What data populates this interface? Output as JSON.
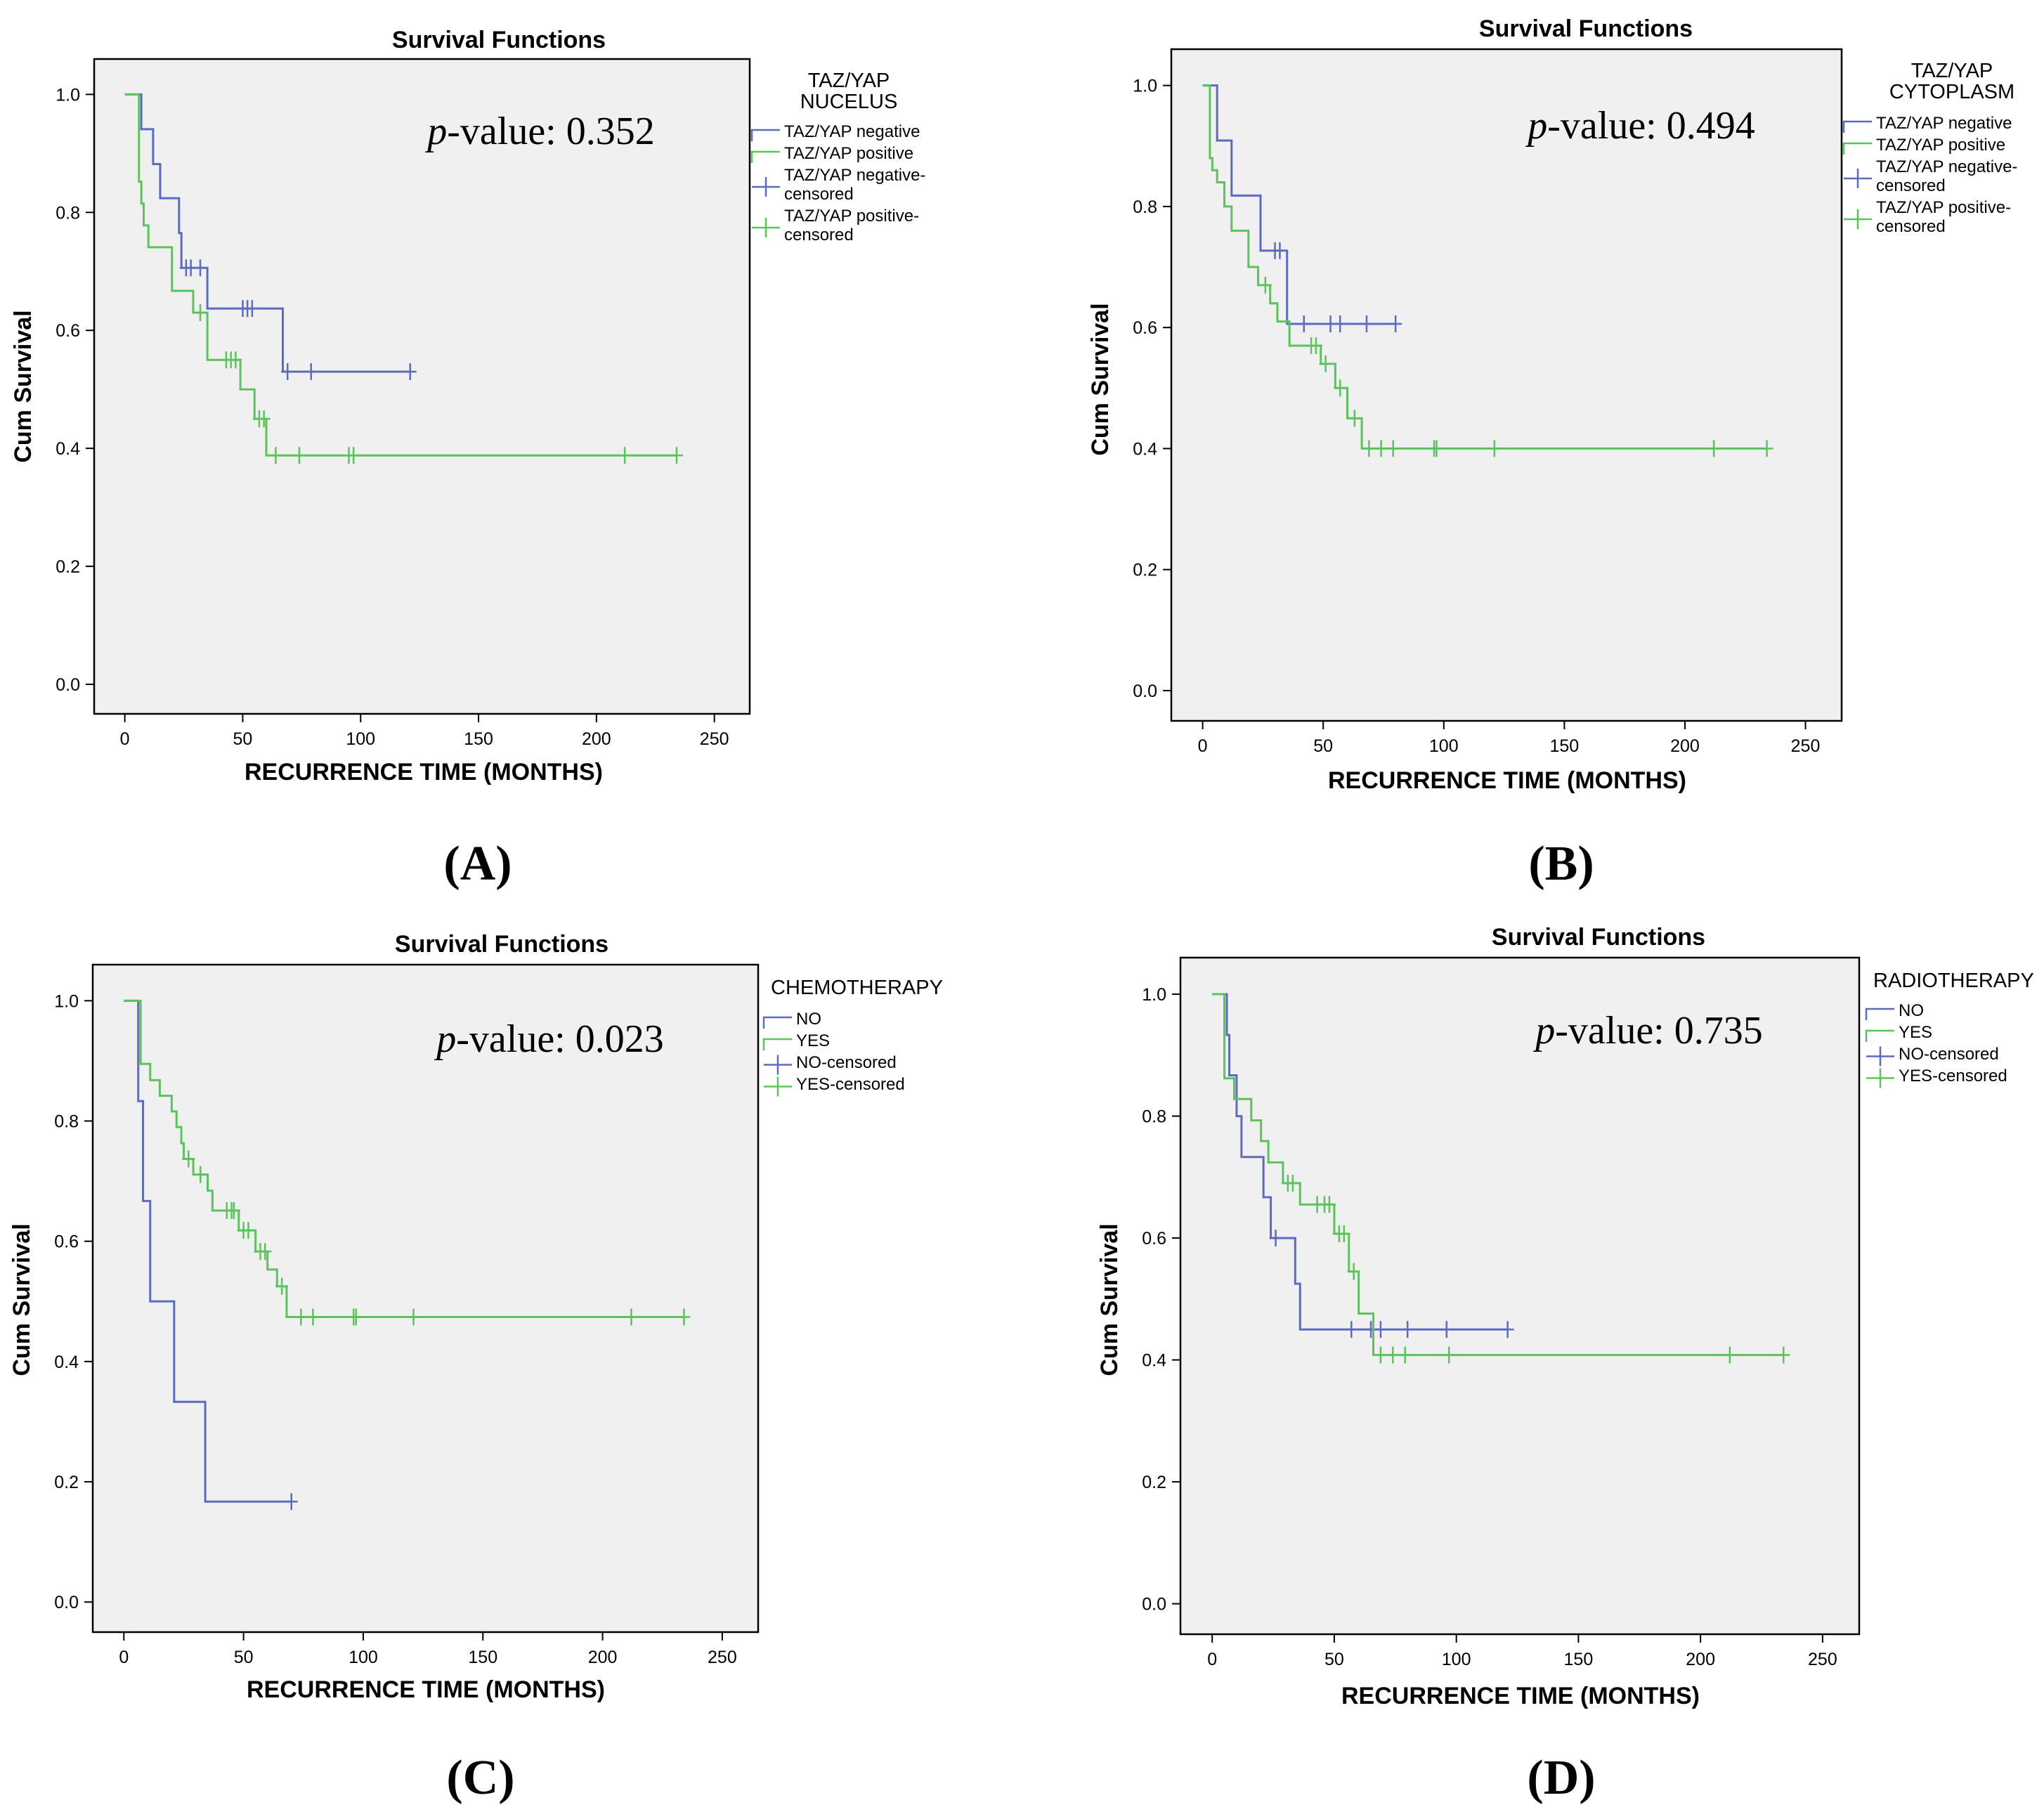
{
  "colors": {
    "negative": "#5b6bbf",
    "positive": "#5bc35b",
    "plot_bg": "#f0f0f0",
    "axis": "#000000"
  },
  "chart_data": [
    {
      "panel": "(A)",
      "type": "line",
      "title": "Survival Functions",
      "xlabel": "RECURRENCE TIME (MONTHS)",
      "ylabel": "Cum Survival",
      "xlim": [
        -13,
        265
      ],
      "ylim": [
        -0.05,
        1.06
      ],
      "xticks": [
        "0",
        "50",
        "100",
        "150",
        "200",
        "250"
      ],
      "yticks": [
        "0.0",
        "0.2",
        "0.4",
        "0.6",
        "0.8",
        "1.0"
      ],
      "annotation": {
        "italic": "p",
        "rest": "-value: 0.352"
      },
      "legend": {
        "title": [
          "TAZ/YAP",
          "NUCELUS"
        ],
        "entries": [
          [
            "TAZ/YAP negative"
          ],
          [
            "TAZ/YAP positive"
          ],
          [
            "TAZ/YAP negative-",
            "censored"
          ],
          [
            "TAZ/YAP positive-",
            "censored"
          ]
        ]
      },
      "series": [
        {
          "name": "TAZ/YAP negative",
          "color_key": "negative",
          "steps": [
            [
              0,
              1.0
            ],
            [
              7,
              0.941
            ],
            [
              12,
              0.882
            ],
            [
              15,
              0.824
            ],
            [
              23,
              0.765
            ],
            [
              24,
              0.706
            ],
            [
              35,
              0.637
            ],
            [
              67,
              0.53
            ],
            [
              121,
              0.53
            ]
          ],
          "censored": [
            [
              26,
              0.706
            ],
            [
              28,
              0.706
            ],
            [
              32,
              0.706
            ],
            [
              50,
              0.637
            ],
            [
              52,
              0.637
            ],
            [
              54,
              0.637
            ],
            [
              69,
              0.53
            ],
            [
              79,
              0.53
            ],
            [
              121,
              0.53
            ]
          ]
        },
        {
          "name": "TAZ/YAP positive",
          "color_key": "positive",
          "steps": [
            [
              0,
              1.0
            ],
            [
              6,
              0.852
            ],
            [
              7,
              0.815
            ],
            [
              8,
              0.778
            ],
            [
              10,
              0.741
            ],
            [
              20,
              0.667
            ],
            [
              29,
              0.63
            ],
            [
              35,
              0.55
            ],
            [
              49,
              0.5
            ],
            [
              55,
              0.45
            ],
            [
              60,
              0.388
            ],
            [
              234,
              0.388
            ]
          ],
          "censored": [
            [
              32,
              0.63
            ],
            [
              43,
              0.55
            ],
            [
              45,
              0.55
            ],
            [
              47,
              0.55
            ],
            [
              57,
              0.45
            ],
            [
              59,
              0.45
            ],
            [
              64,
              0.388
            ],
            [
              74,
              0.388
            ],
            [
              95,
              0.388
            ],
            [
              97,
              0.388
            ],
            [
              212,
              0.388
            ],
            [
              234,
              0.388
            ]
          ]
        }
      ]
    },
    {
      "panel": "(B)",
      "type": "line",
      "title": "Survival Functions",
      "xlabel": "RECURRENCE TIME (MONTHS)",
      "ylabel": "Cum Survival",
      "xlim": [
        -13,
        265
      ],
      "ylim": [
        -0.05,
        1.06
      ],
      "xticks": [
        "0",
        "50",
        "100",
        "150",
        "200",
        "250"
      ],
      "yticks": [
        "0.0",
        "0.2",
        "0.4",
        "0.6",
        "0.8",
        "1.0"
      ],
      "annotation": {
        "italic": "p",
        "rest": "-value: 0.494"
      },
      "legend": {
        "title": [
          "TAZ/YAP",
          "CYTOPLASM"
        ],
        "entries": [
          [
            "TAZ/YAP negative"
          ],
          [
            "TAZ/YAP positive"
          ],
          [
            "TAZ/YAP negative-",
            "censored"
          ],
          [
            "TAZ/YAP positive-",
            "censored"
          ]
        ]
      },
      "series": [
        {
          "name": "TAZ/YAP negative",
          "color_key": "negative",
          "steps": [
            [
              0,
              1.0
            ],
            [
              6,
              0.909
            ],
            [
              12,
              0.818
            ],
            [
              24,
              0.727
            ],
            [
              35,
              0.606
            ],
            [
              80,
              0.606
            ]
          ],
          "censored": [
            [
              30,
              0.727
            ],
            [
              32,
              0.727
            ],
            [
              42,
              0.606
            ],
            [
              53,
              0.606
            ],
            [
              57,
              0.606
            ],
            [
              68,
              0.606
            ],
            [
              80,
              0.606
            ]
          ]
        },
        {
          "name": "TAZ/YAP positive",
          "color_key": "positive",
          "steps": [
            [
              0,
              1.0
            ],
            [
              3,
              0.88
            ],
            [
              4,
              0.86
            ],
            [
              6,
              0.84
            ],
            [
              9,
              0.8
            ],
            [
              12,
              0.76
            ],
            [
              19,
              0.7
            ],
            [
              23,
              0.67
            ],
            [
              28,
              0.64
            ],
            [
              31,
              0.61
            ],
            [
              36,
              0.57
            ],
            [
              49,
              0.54
            ],
            [
              55,
              0.5
            ],
            [
              60,
              0.45
            ],
            [
              66,
              0.4
            ],
            [
              234,
              0.4
            ]
          ],
          "censored": [
            [
              26,
              0.67
            ],
            [
              45,
              0.57
            ],
            [
              47,
              0.57
            ],
            [
              51,
              0.54
            ],
            [
              57,
              0.5
            ],
            [
              63,
              0.45
            ],
            [
              69,
              0.4
            ],
            [
              74,
              0.4
            ],
            [
              79,
              0.4
            ],
            [
              96,
              0.4
            ],
            [
              97,
              0.4
            ],
            [
              121,
              0.4
            ],
            [
              212,
              0.4
            ],
            [
              234,
              0.4
            ]
          ]
        }
      ]
    },
    {
      "panel": "(C)",
      "type": "line",
      "title": "Survival Functions",
      "xlabel": "RECURRENCE TIME (MONTHS)",
      "ylabel": "Cum Survival",
      "xlim": [
        -13,
        265
      ],
      "ylim": [
        -0.05,
        1.06
      ],
      "xticks": [
        "0",
        "50",
        "100",
        "150",
        "200",
        "250"
      ],
      "yticks": [
        "0.0",
        "0.2",
        "0.4",
        "0.6",
        "0.8",
        "1.0"
      ],
      "annotation": {
        "italic": "p",
        "rest": "-value: 0.023"
      },
      "legend": {
        "title": [
          "CHEMOTHERAPY"
        ],
        "entries": [
          [
            "NO"
          ],
          [
            "YES"
          ],
          [
            "NO-censored"
          ],
          [
            "YES-censored"
          ]
        ]
      },
      "series": [
        {
          "name": "NO",
          "color_key": "negative",
          "steps": [
            [
              0,
              1.0
            ],
            [
              6,
              0.833
            ],
            [
              8,
              0.667
            ],
            [
              11,
              0.5
            ],
            [
              21,
              0.333
            ],
            [
              34,
              0.167
            ],
            [
              70,
              0.167
            ]
          ],
          "censored": [
            [
              70,
              0.167
            ]
          ]
        },
        {
          "name": "YES",
          "color_key": "positive",
          "steps": [
            [
              0,
              1.0
            ],
            [
              7,
              0.895
            ],
            [
              11,
              0.868
            ],
            [
              15,
              0.842
            ],
            [
              20,
              0.816
            ],
            [
              22,
              0.79
            ],
            [
              24,
              0.763
            ],
            [
              25,
              0.737
            ],
            [
              29,
              0.711
            ],
            [
              35,
              0.684
            ],
            [
              37,
              0.651
            ],
            [
              48,
              0.618
            ],
            [
              55,
              0.583
            ],
            [
              60,
              0.553
            ],
            [
              64,
              0.525
            ],
            [
              68,
              0.474
            ],
            [
              234,
              0.474
            ]
          ],
          "censored": [
            [
              27,
              0.737
            ],
            [
              32,
              0.711
            ],
            [
              43,
              0.651
            ],
            [
              45,
              0.651
            ],
            [
              46,
              0.651
            ],
            [
              50,
              0.618
            ],
            [
              52,
              0.618
            ],
            [
              57,
              0.583
            ],
            [
              59,
              0.583
            ],
            [
              66,
              0.525
            ],
            [
              74,
              0.474
            ],
            [
              79,
              0.474
            ],
            [
              96,
              0.474
            ],
            [
              97,
              0.474
            ],
            [
              121,
              0.474
            ],
            [
              212,
              0.474
            ],
            [
              234,
              0.474
            ]
          ]
        }
      ]
    },
    {
      "panel": "(D)",
      "type": "line",
      "title": "Survival Functions",
      "xlabel": "RECURRENCE TIME (MONTHS)",
      "ylabel": "Cum Survival",
      "xlim": [
        -13,
        265
      ],
      "ylim": [
        -0.05,
        1.06
      ],
      "xticks": [
        "0",
        "50",
        "100",
        "150",
        "200",
        "250"
      ],
      "yticks": [
        "0.0",
        "0.2",
        "0.4",
        "0.6",
        "0.8",
        "1.0"
      ],
      "annotation": {
        "italic": "p",
        "rest": "-value: 0.735"
      },
      "legend": {
        "title": [
          "RADIOTHERAPY"
        ],
        "entries": [
          [
            "NO"
          ],
          [
            "YES"
          ],
          [
            "NO-censored"
          ],
          [
            "YES-censored"
          ]
        ]
      },
      "series": [
        {
          "name": "NO",
          "color_key": "negative",
          "steps": [
            [
              0,
              1.0
            ],
            [
              6,
              0.933
            ],
            [
              7,
              0.867
            ],
            [
              10,
              0.8
            ],
            [
              12,
              0.733
            ],
            [
              21,
              0.667
            ],
            [
              24,
              0.6
            ],
            [
              34,
              0.525
            ],
            [
              36,
              0.45
            ],
            [
              121,
              0.45
            ]
          ],
          "censored": [
            [
              26,
              0.6
            ],
            [
              57,
              0.45
            ],
            [
              65,
              0.45
            ],
            [
              69,
              0.45
            ],
            [
              80,
              0.45
            ],
            [
              96,
              0.45
            ],
            [
              121,
              0.45
            ]
          ]
        },
        {
          "name": "YES",
          "color_key": "positive",
          "steps": [
            [
              0,
              1.0
            ],
            [
              5,
              0.862
            ],
            [
              9,
              0.828
            ],
            [
              16,
              0.793
            ],
            [
              20,
              0.759
            ],
            [
              23,
              0.724
            ],
            [
              29,
              0.69
            ],
            [
              36,
              0.655
            ],
            [
              50,
              0.607
            ],
            [
              56,
              0.545
            ],
            [
              60,
              0.476
            ],
            [
              66,
              0.408
            ],
            [
              234,
              0.408
            ]
          ],
          "censored": [
            [
              31,
              0.69
            ],
            [
              33,
              0.69
            ],
            [
              43,
              0.655
            ],
            [
              46,
              0.655
            ],
            [
              48,
              0.655
            ],
            [
              52,
              0.607
            ],
            [
              54,
              0.607
            ],
            [
              58,
              0.545
            ],
            [
              69,
              0.408
            ],
            [
              74,
              0.408
            ],
            [
              79,
              0.408
            ],
            [
              97,
              0.408
            ],
            [
              212,
              0.408
            ],
            [
              234,
              0.408
            ]
          ]
        }
      ]
    }
  ]
}
